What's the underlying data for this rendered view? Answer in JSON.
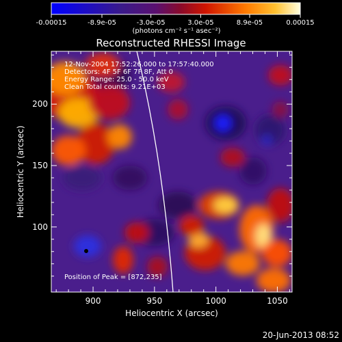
{
  "chart_data": {
    "type": "heatmap",
    "title": "Reconstructed RHESSI Image",
    "xlabel": "Heliocentric X (arcsec)",
    "ylabel": "Heliocentric Y (arcsec)",
    "xlim": [
      866,
      1062
    ],
    "ylim": [
      47,
      243
    ],
    "x_ticks": [
      "900",
      "950",
      "1000",
      "1050"
    ],
    "y_ticks": [
      "100",
      "150",
      "200"
    ],
    "colorbar": {
      "range": [
        -0.00015,
        0.00015
      ],
      "tick_labels": [
        "-0.00015",
        "-8.9e-05",
        "-3.0e-05",
        "3.0e-05",
        "8.9e-05",
        "0.00015"
      ],
      "units": "(photons cm⁻² s⁻¹ asec⁻²)",
      "colormap": [
        "#0000ff",
        "#4a1c8a",
        "#8a1d9a",
        "#b0183a",
        "#ff2a00",
        "#ff9a00",
        "#ffff90"
      ]
    },
    "annotations": {
      "time_range": "12-Nov-2004 17:52:26.000 to 17:57:40.000",
      "detectors": "Detectors: 4F 5F 6F 7F 8F, Att 0",
      "energy": "Energy Range: 25.0 - 50.0 keV",
      "method": "Clean     Total counts: 9.21E+03",
      "peak": "Position of Peak = [872,235]"
    },
    "peak_position": [
      872,
      235
    ],
    "limb_curve": "white line",
    "marker": "black dot near [898, 88]"
  },
  "footer": {
    "date": "20-Jun-2013 08:52"
  }
}
